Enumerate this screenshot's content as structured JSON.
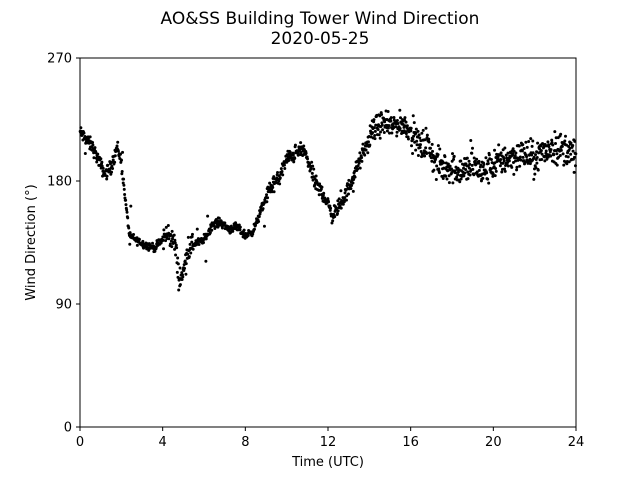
{
  "chart_data": {
    "type": "scatter",
    "title": "AO&SS Building Tower Wind Direction",
    "subtitle": "2020-05-25",
    "xlabel": "Time (UTC)",
    "ylabel": "Wind Direction (°)",
    "xlim": [
      0,
      24
    ],
    "ylim": [
      0,
      270
    ],
    "xticks": [
      0,
      4,
      8,
      12,
      16,
      20,
      24
    ],
    "yticks": [
      0,
      90,
      180,
      270
    ],
    "xtick_labels": [
      "0",
      "4",
      "8",
      "12",
      "16",
      "20",
      "24"
    ],
    "ytick_labels": [
      "0",
      "90",
      "180",
      "270"
    ],
    "grid": false,
    "marker_color": "#000000",
    "trend": [
      [
        0.0,
        216
      ],
      [
        0.3,
        210
      ],
      [
        0.6,
        205
      ],
      [
        0.9,
        195
      ],
      [
        1.2,
        185
      ],
      [
        1.5,
        190
      ],
      [
        1.8,
        205
      ],
      [
        2.0,
        195
      ],
      [
        2.2,
        165
      ],
      [
        2.4,
        140
      ],
      [
        2.8,
        136
      ],
      [
        3.2,
        133
      ],
      [
        3.6,
        131
      ],
      [
        4.0,
        137
      ],
      [
        4.3,
        142
      ],
      [
        4.6,
        133
      ],
      [
        4.8,
        108
      ],
      [
        5.0,
        112
      ],
      [
        5.2,
        130
      ],
      [
        5.5,
        134
      ],
      [
        6.0,
        137
      ],
      [
        6.4,
        148
      ],
      [
        6.8,
        150
      ],
      [
        7.2,
        145
      ],
      [
        7.6,
        146
      ],
      [
        8.0,
        140
      ],
      [
        8.4,
        144
      ],
      [
        8.8,
        160
      ],
      [
        9.2,
        175
      ],
      [
        9.6,
        181
      ],
      [
        10.0,
        196
      ],
      [
        10.4,
        200
      ],
      [
        10.8,
        203
      ],
      [
        11.1,
        192
      ],
      [
        11.4,
        178
      ],
      [
        11.8,
        170
      ],
      [
        12.2,
        155
      ],
      [
        12.6,
        162
      ],
      [
        13.0,
        175
      ],
      [
        13.4,
        190
      ],
      [
        13.8,
        203
      ],
      [
        14.2,
        218
      ],
      [
        14.6,
        222
      ],
      [
        15.0,
        220
      ],
      [
        15.4,
        222
      ],
      [
        15.8,
        220
      ],
      [
        16.2,
        212
      ],
      [
        16.5,
        205
      ],
      [
        16.8,
        208
      ],
      [
        17.2,
        193
      ],
      [
        17.6,
        190
      ],
      [
        18.0,
        190
      ],
      [
        18.5,
        187
      ],
      [
        19.0,
        192
      ],
      [
        19.5,
        186
      ],
      [
        20.0,
        192
      ],
      [
        20.5,
        196
      ],
      [
        21.0,
        198
      ],
      [
        21.5,
        200
      ],
      [
        22.0,
        196
      ],
      [
        22.5,
        202
      ],
      [
        23.0,
        205
      ],
      [
        23.5,
        203
      ],
      [
        24.0,
        198
      ]
    ],
    "points_per_hour": 60
  }
}
